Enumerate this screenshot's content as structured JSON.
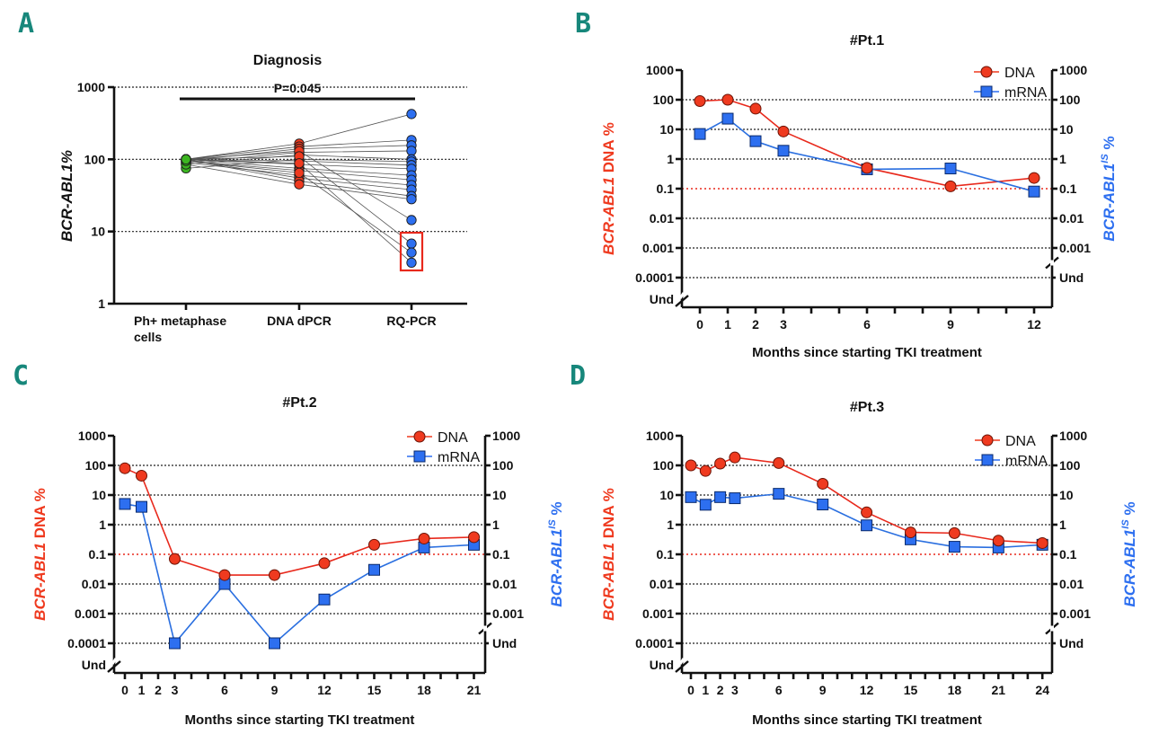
{
  "chart_data": [
    {
      "panel": "A",
      "type": "scatter",
      "title": "Diagnosis",
      "ylabel": "BCR-ABL1%",
      "yscale": "log",
      "ylim": [
        1,
        1000
      ],
      "yticks": [
        "1",
        "10",
        "100",
        "1000"
      ],
      "grid": true,
      "categories": [
        "Ph+ metaphase cells",
        "DNA dPCR",
        "RQ-PCR"
      ],
      "category_lines": [
        [
          "Ph+ metaphase",
          "cells"
        ],
        [
          "DNA dPCR"
        ],
        [
          "RQ-PCR"
        ]
      ],
      "colors": {
        "Ph+ metaphase cells": "#3cb521",
        "DNA dPCR": "#ef3a1f",
        "RQ-PCR": "#2d6ff0"
      },
      "annotation": {
        "text": "P=0.045",
        "from": "Ph+ metaphase cells",
        "to": "RQ-PCR"
      },
      "highlight_box": {
        "category": "RQ-PCR",
        "values": [
          6.8,
          5.1,
          3.7
        ],
        "color": "#e8291c"
      },
      "series": [
        {
          "name": "Ph+ metaphase cells",
          "values": [
            100,
            100,
            95,
            90,
            85,
            75,
            100,
            100,
            100,
            95,
            90,
            100,
            100,
            85,
            100,
            100,
            95,
            100
          ]
        },
        {
          "name": "DNA dPCR",
          "values": [
            165,
            150,
            140,
            125,
            115,
            100,
            95,
            85,
            75,
            70,
            60,
            55,
            50,
            45,
            130,
            110,
            65,
            88
          ]
        },
        {
          "name": "RQ-PCR",
          "values": [
            424,
            185,
            156,
            131,
            100,
            93,
            83,
            74,
            60,
            52,
            44,
            38,
            31,
            28,
            14.4,
            6.8,
            5.1,
            3.7
          ]
        }
      ]
    },
    {
      "panel": "B",
      "type": "line",
      "title": "#Pt.1",
      "xlabel": "Months since starting TKI treatment",
      "ylabel_left": {
        "gene": "BCR-ABL1",
        "suffix": " DNA %"
      },
      "ylabel_right": {
        "gene": "BCR-ABL1",
        "sup": "IS",
        "suffix": " %"
      },
      "yscale": "log",
      "yticks_left": [
        "Und",
        "0.0001",
        "0.001",
        "0.01",
        "0.1",
        "1",
        "10",
        "100",
        "1000"
      ],
      "yticks_right": [
        "Und",
        "0.001",
        "0.01",
        "0.1",
        "1",
        "10",
        "100",
        "1000"
      ],
      "xlim": [
        0,
        12
      ],
      "xticks": [
        0,
        1,
        2,
        3,
        6,
        9,
        12
      ],
      "threshold": 0.1,
      "legend": {
        "position": "top-right",
        "entries": [
          "DNA",
          "mRNA"
        ]
      },
      "series": [
        {
          "name": "DNA",
          "x": [
            0,
            1,
            2,
            3,
            6,
            9,
            12
          ],
          "y": [
            90,
            100,
            50,
            8.5,
            0.5,
            0.12,
            0.23
          ]
        },
        {
          "name": "mRNA",
          "x": [
            0,
            1,
            2,
            3,
            6,
            9,
            12
          ],
          "y": [
            7,
            23,
            4,
            1.9,
            0.45,
            0.48,
            0.08
          ]
        }
      ]
    },
    {
      "panel": "C",
      "type": "line",
      "title": "#Pt.2",
      "xlabel": "Months since starting TKI treatment",
      "ylabel_left": {
        "gene": "BCR-ABL1",
        "suffix": " DNA %"
      },
      "ylabel_right": {
        "gene": "BCR-ABL1",
        "sup": "IS",
        "suffix": " %"
      },
      "yscale": "log",
      "yticks_left": [
        "Und",
        "0.0001",
        "0.001",
        "0.01",
        "0.1",
        "1",
        "10",
        "100",
        "1000"
      ],
      "yticks_right": [
        "Und",
        "0.001",
        "0.01",
        "0.1",
        "1",
        "10",
        "100",
        "1000"
      ],
      "xlim": [
        0,
        21
      ],
      "xticks": [
        0,
        1,
        2,
        3,
        6,
        9,
        12,
        15,
        18,
        21
      ],
      "threshold": 0.1,
      "legend": {
        "position": "top-right",
        "entries": [
          "DNA",
          "mRNA"
        ]
      },
      "series": [
        {
          "name": "DNA",
          "x": [
            0,
            1,
            3,
            6,
            9,
            12,
            15,
            18,
            21
          ],
          "y": [
            80,
            45,
            0.07,
            0.02,
            0.02,
            0.05,
            0.21,
            0.34,
            0.38
          ]
        },
        {
          "name": "mRNA",
          "x": [
            0,
            1,
            3,
            6,
            9,
            12,
            15,
            18,
            21
          ],
          "y": [
            5,
            4,
            "Und",
            0.01,
            "Und",
            0.003,
            0.03,
            0.17,
            0.21
          ]
        }
      ]
    },
    {
      "panel": "D",
      "type": "line",
      "title": "#Pt.3",
      "xlabel": "Months since starting TKI treatment",
      "ylabel_left": {
        "gene": "BCR-ABL1",
        "suffix": " DNA %"
      },
      "ylabel_right": {
        "gene": "BCR-ABL1",
        "sup": "IS",
        "suffix": " %"
      },
      "yscale": "log",
      "yticks_left": [
        "Und",
        "0.0001",
        "0.001",
        "0.01",
        "0.1",
        "1",
        "10",
        "100",
        "1000"
      ],
      "yticks_right": [
        "Und",
        "0.001",
        "0.01",
        "0.1",
        "1",
        "10",
        "100",
        "1000"
      ],
      "xlim": [
        0,
        24
      ],
      "xticks": [
        0,
        1,
        2,
        3,
        6,
        9,
        12,
        15,
        18,
        21,
        24
      ],
      "threshold": 0.1,
      "legend": {
        "position": "top-right",
        "entries": [
          "DNA",
          "mRNA"
        ]
      },
      "series": [
        {
          "name": "DNA",
          "x": [
            0,
            1,
            2,
            3,
            6,
            9,
            12,
            15,
            18,
            21,
            24
          ],
          "y": [
            100,
            65,
            115,
            185,
            120,
            24,
            2.6,
            0.55,
            0.52,
            0.29,
            0.24
          ]
        },
        {
          "name": "mRNA",
          "x": [
            0,
            1,
            2,
            3,
            6,
            9,
            12,
            15,
            18,
            21,
            24
          ],
          "y": [
            8.5,
            4.7,
            8.5,
            7.8,
            11,
            4.8,
            0.95,
            0.32,
            0.18,
            0.17,
            0.21
          ]
        }
      ]
    }
  ],
  "panel_labels": [
    "A",
    "B",
    "C",
    "D"
  ],
  "colors": {
    "dna": "#ef3a1f",
    "mrna": "#2d6ff0",
    "ph": "#3cb521",
    "panel_label": "#17877b",
    "threshold": "#e8291c"
  }
}
